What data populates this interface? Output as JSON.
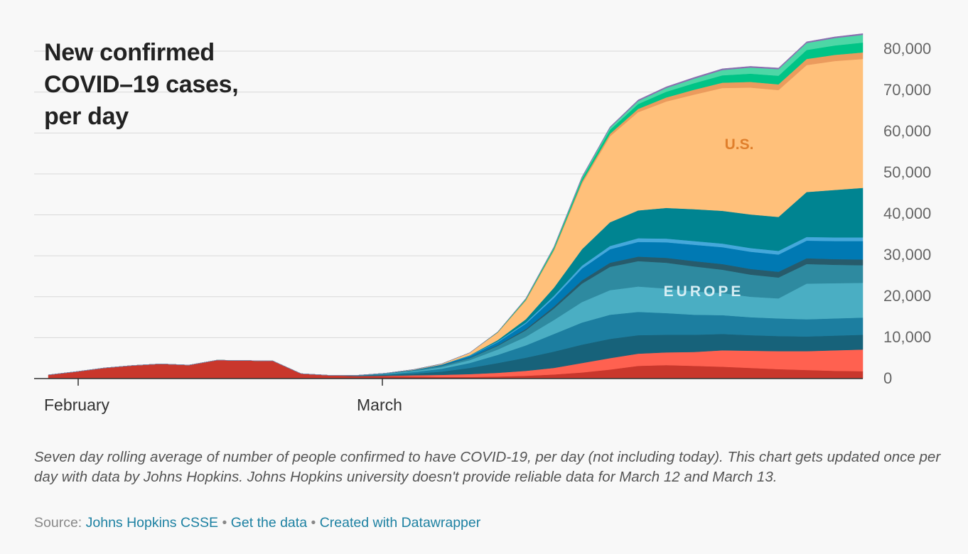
{
  "chart_data": {
    "type": "area",
    "stacked": true,
    "title": "New confirmed COVID–19 cases, per day",
    "x_tick_labels": [
      "February",
      "March"
    ],
    "y_tick_labels": [
      "80,000",
      "70,000",
      "60,000",
      "50,000",
      "40,000",
      "30,000",
      "20,000",
      "10,000",
      "0"
    ],
    "ylim": [
      0,
      84000
    ],
    "grid": true,
    "annotations": [
      "U.S.",
      "EUROPE"
    ],
    "x_dates": [
      "Jan 28",
      "Jan 31",
      "Feb 3",
      "Feb 6",
      "Feb 9",
      "Feb 12",
      "Feb 15",
      "Feb 18",
      "Feb 21",
      "Feb 24",
      "Feb 27",
      "Mar 1",
      "Mar 4",
      "Mar 7",
      "Mar 10",
      "Mar 13",
      "Mar 16",
      "Mar 19",
      "Mar 22",
      "Mar 25",
      "Mar 28",
      "Mar 31",
      "Apr 3",
      "Apr 6",
      "Apr 9",
      "Apr 12",
      "Apr 15",
      "Apr 18",
      "Apr 21",
      "Apr 24"
    ],
    "series": [
      {
        "color": "#c9372c",
        "values": [
          900,
          1700,
          2600,
          3200,
          3600,
          3300,
          4500,
          4400,
          4300,
          1200,
          800,
          600,
          600,
          500,
          400,
          400,
          500,
          700,
          1000,
          1500,
          2200,
          3100,
          3300,
          3100,
          2900,
          2600,
          2300,
          2100,
          1900,
          1800
        ]
      },
      {
        "color": "#ff6150",
        "values": [
          0,
          0,
          0,
          0,
          0,
          0,
          0,
          0,
          0,
          0,
          0,
          0,
          100,
          300,
          500,
          700,
          900,
          1200,
          1600,
          2300,
          2800,
          3000,
          3100,
          3400,
          4000,
          4200,
          4400,
          4600,
          5000,
          5300
        ]
      },
      {
        "color": "#17627a",
        "values": [
          0,
          0,
          0,
          0,
          0,
          0,
          0,
          0,
          0,
          0,
          0,
          100,
          200,
          400,
          800,
          1500,
          2400,
          3200,
          4000,
          4500,
          4700,
          4500,
          4300,
          4200,
          4000,
          3800,
          3700,
          3600,
          3600,
          3600
        ]
      },
      {
        "color": "#1c7ea0",
        "values": [
          0,
          0,
          0,
          0,
          0,
          0,
          0,
          0,
          0,
          0,
          0,
          100,
          200,
          400,
          700,
          1200,
          2000,
          3000,
          4300,
          5400,
          5900,
          5700,
          5300,
          4900,
          4600,
          4400,
          4300,
          4200,
          4200,
          4200
        ]
      },
      {
        "color": "#4aaec3",
        "values": [
          0,
          0,
          0,
          0,
          0,
          0,
          0,
          0,
          0,
          0,
          0,
          0,
          100,
          200,
          400,
          700,
          1300,
          2100,
          3400,
          5000,
          6000,
          6200,
          6000,
          5700,
          5400,
          5000,
          4900,
          8700,
          8600,
          8500
        ]
      },
      {
        "color": "#2e8aa0",
        "values": [
          0,
          0,
          0,
          0,
          0,
          0,
          0,
          0,
          0,
          0,
          0,
          0,
          100,
          200,
          300,
          500,
          900,
          1600,
          2800,
          4500,
          5700,
          6200,
          6300,
          6100,
          5700,
          5400,
          5100,
          4800,
          4500,
          4300
        ]
      },
      {
        "color": "#275b6b",
        "values": [
          0,
          0,
          0,
          0,
          0,
          0,
          0,
          0,
          0,
          0,
          0,
          0,
          0,
          0,
          100,
          100,
          200,
          300,
          500,
          800,
          1000,
          1100,
          1200,
          1300,
          1400,
          1400,
          1400,
          1400,
          1400,
          1400
        ]
      },
      {
        "color": "#0079b3",
        "values": [
          0,
          0,
          0,
          0,
          0,
          0,
          0,
          0,
          0,
          0,
          0,
          0,
          0,
          100,
          200,
          400,
          700,
          1300,
          2100,
          2900,
          3300,
          3600,
          3800,
          4000,
          4100,
          4200,
          4200,
          4300,
          4400,
          4500
        ]
      },
      {
        "color": "#45a8db",
        "values": [
          0,
          0,
          0,
          0,
          0,
          0,
          0,
          0,
          0,
          0,
          0,
          0,
          0,
          0,
          0,
          100,
          200,
          300,
          500,
          700,
          800,
          900,
          900,
          900,
          900,
          900,
          900,
          900,
          900,
          900
        ]
      },
      {
        "color": "#008491",
        "values": [
          0,
          0,
          0,
          0,
          0,
          0,
          0,
          0,
          0,
          0,
          0,
          0,
          0,
          0,
          0,
          100,
          300,
          800,
          2000,
          4000,
          5800,
          6800,
          7500,
          7800,
          8000,
          8200,
          8300,
          11000,
          11600,
          12100
        ]
      },
      {
        "color": "#ffc07a",
        "values": [
          0,
          0,
          0,
          0,
          0,
          0,
          0,
          0,
          0,
          0,
          0,
          0,
          0,
          100,
          200,
          600,
          1800,
          4500,
          9000,
          16000,
          21000,
          24000,
          26000,
          28000,
          30000,
          31000,
          31000,
          31000,
          31500,
          31500
        ]
      },
      {
        "color": "#eb9b5d",
        "values": [
          0,
          0,
          0,
          0,
          0,
          0,
          0,
          0,
          0,
          0,
          0,
          0,
          0,
          0,
          0,
          0,
          100,
          200,
          300,
          500,
          600,
          800,
          1000,
          1200,
          1300,
          1400,
          1400,
          1500,
          1500,
          1600
        ]
      },
      {
        "color": "#00c486",
        "values": [
          0,
          0,
          0,
          0,
          0,
          0,
          0,
          0,
          0,
          0,
          0,
          0,
          0,
          0,
          0,
          0,
          100,
          200,
          400,
          700,
          1000,
          1200,
          1400,
          1600,
          1800,
          2000,
          2100,
          2200,
          2300,
          2400
        ]
      },
      {
        "color": "#4dd7a6",
        "values": [
          0,
          0,
          0,
          0,
          0,
          0,
          0,
          0,
          0,
          0,
          0,
          0,
          0,
          0,
          0,
          0,
          0,
          100,
          200,
          300,
          500,
          700,
          900,
          1100,
          1300,
          1500,
          1600,
          1700,
          1800,
          1900
        ]
      },
      {
        "color": "#8a6fb0",
        "values": [
          0,
          0,
          0,
          0,
          0,
          0,
          0,
          0,
          0,
          0,
          0,
          0,
          0,
          0,
          0,
          0,
          0,
          100,
          100,
          200,
          200,
          300,
          300,
          300,
          300,
          300,
          300,
          300,
          300,
          300
        ]
      }
    ]
  },
  "note": "Seven day rolling average of number of people confirmed to have COVID-19, per day (not including today). This chart gets updated once per day with data by Johns Hopkins. Johns Hopkins university doesn't provide reliable data for March 12 and March 13.",
  "source": {
    "label": "Source: ",
    "link1": "Johns Hopkins CSSE",
    "sep": " • ",
    "link2": "Get the data",
    "link3": "Created with Datawrapper"
  }
}
